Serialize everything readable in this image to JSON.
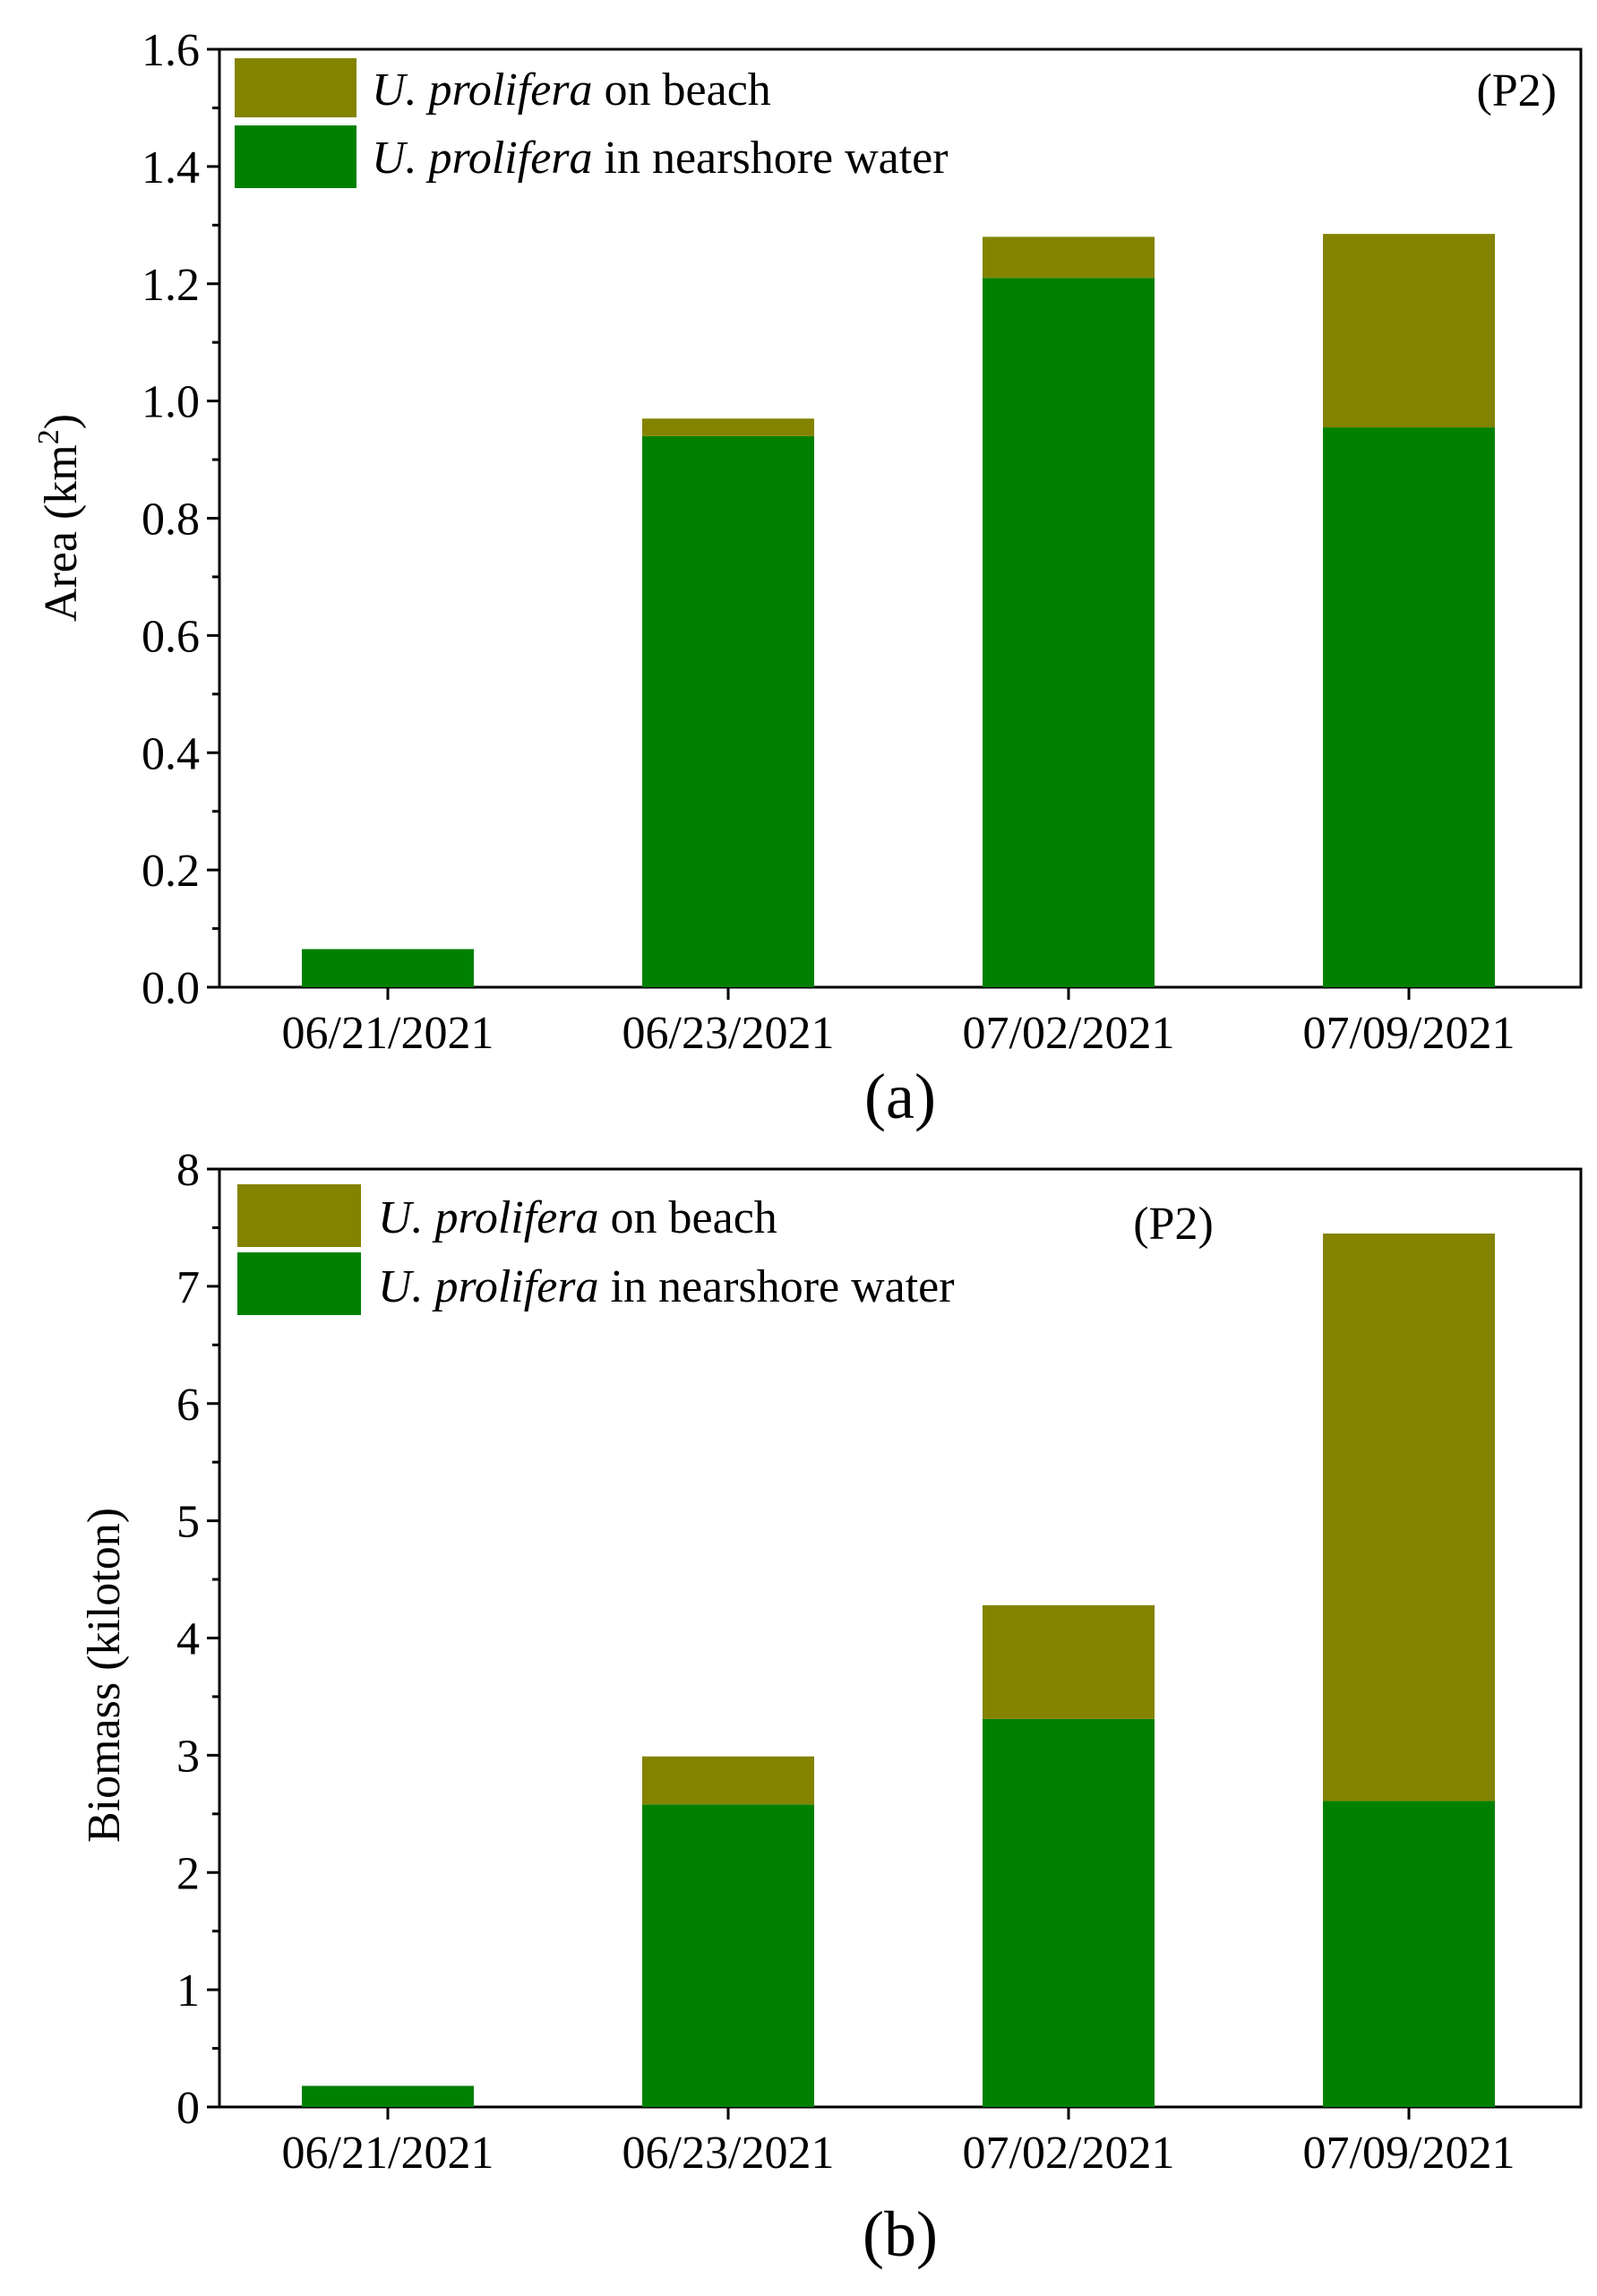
{
  "colors": {
    "on_beach": "#838300",
    "nearshore": "#008000"
  },
  "chart_data": [
    {
      "type": "bar",
      "stacked": true,
      "panel_label": "(a)",
      "panel_tag": "(P2)",
      "ylabel_main": "Area (km",
      "ylabel_sup": "2",
      "ylabel_end": ")",
      "xlabel": "",
      "ylim": [
        0,
        1.6
      ],
      "yticks": [
        "0.0",
        "0.2",
        "0.4",
        "0.6",
        "0.8",
        "1.0",
        "1.2",
        "1.4",
        "1.6"
      ],
      "categories": [
        "06/21/2021",
        "06/23/2021",
        "07/02/2021",
        "07/09/2021"
      ],
      "legend_position": "top-left",
      "series": [
        {
          "name": "U. prolifera in nearshore water",
          "name_italic": "U. prolifera",
          "name_rest": " in nearshore water",
          "color_key": "nearshore",
          "values": [
            0.065,
            0.94,
            1.21,
            0.955
          ]
        },
        {
          "name": "U. prolifera on beach",
          "name_italic": "U. prolifera",
          "name_rest": " on beach",
          "color_key": "on_beach",
          "values": [
            0.0,
            0.03,
            0.07,
            0.33
          ]
        }
      ]
    },
    {
      "type": "bar",
      "stacked": true,
      "panel_label": "(b)",
      "panel_tag": "(P2)",
      "ylabel_main": "Biomass (kiloton)",
      "ylabel_sup": "",
      "ylabel_end": "",
      "xlabel": "",
      "ylim": [
        0,
        8
      ],
      "yticks": [
        "0",
        "1",
        "2",
        "3",
        "4",
        "5",
        "6",
        "7",
        "8"
      ],
      "categories": [
        "06/21/2021",
        "06/23/2021",
        "07/02/2021",
        "07/09/2021"
      ],
      "legend_position": "top-left",
      "series": [
        {
          "name": "U. prolifera in nearshore water",
          "name_italic": "U. prolifera",
          "name_rest": " in nearshore water",
          "color_key": "nearshore",
          "values": [
            0.18,
            2.58,
            3.31,
            2.61
          ]
        },
        {
          "name": "U. prolifera on beach",
          "name_italic": "U. prolifera",
          "name_rest": " on beach",
          "color_key": "on_beach",
          "values": [
            0.0,
            0.41,
            0.97,
            4.84
          ]
        }
      ]
    }
  ]
}
